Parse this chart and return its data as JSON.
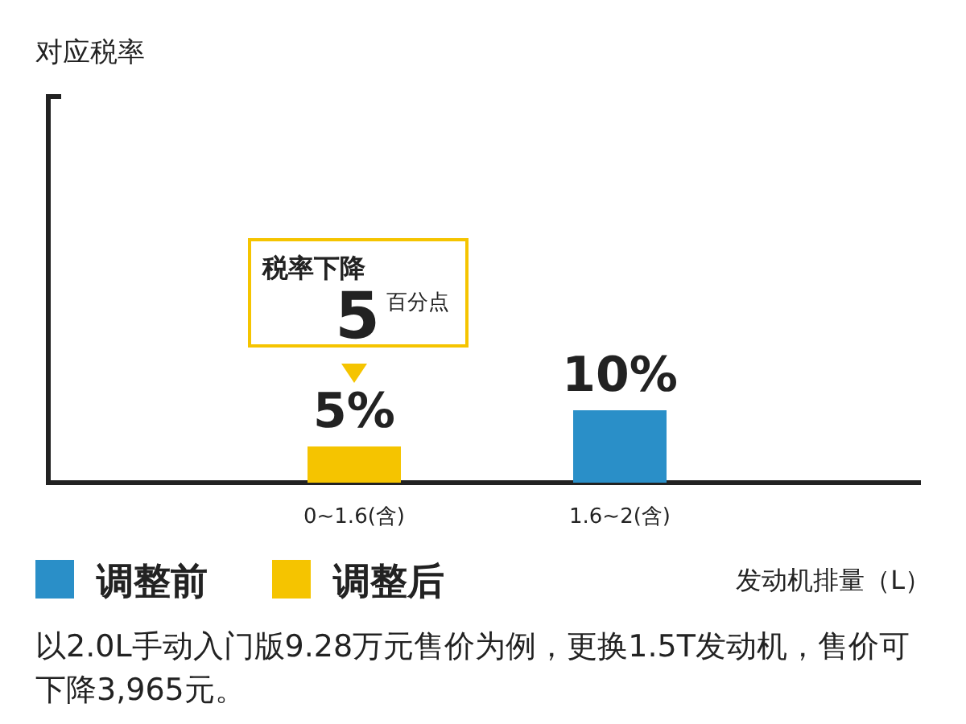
{
  "chart_data": {
    "type": "bar",
    "xlabel": "发动机排量（L）",
    "categories": [
      "0~1.6(含)",
      "1.6~2(含)"
    ],
    "series": [
      {
        "name": "调整前",
        "color": "#2a8fc8",
        "values": [
          null,
          10
        ],
        "value_labels": [
          null,
          "10%"
        ]
      },
      {
        "name": "调整后",
        "color": "#f5c400",
        "values": [
          5,
          null
        ],
        "value_labels": [
          "5%",
          null
        ]
      }
    ],
    "legend": "bottom left",
    "annotations": [
      "对应税率",
      "税率下降",
      "5",
      "百分点",
      "以2.0L手动入门版9.28万元售价为例，更换1.5T发动机，售价可下降3,965元。"
    ]
  }
}
